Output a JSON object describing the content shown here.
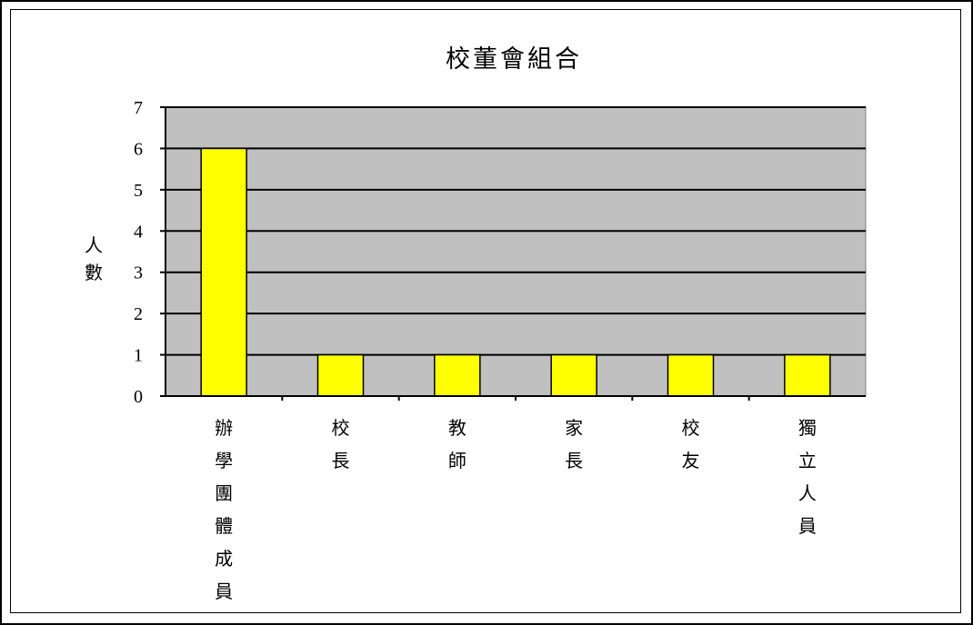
{
  "chart_data": {
    "type": "bar",
    "title": "校董會組合",
    "ylabel": "人數",
    "xlabel": "",
    "categories": [
      "辦學團體成員",
      "校長",
      "教師",
      "家長",
      "校友",
      "獨立人員"
    ],
    "values": [
      6,
      1,
      1,
      1,
      1,
      1
    ],
    "ylim": [
      0,
      7
    ],
    "yticks": [
      0,
      1,
      2,
      3,
      4,
      5,
      6,
      7
    ],
    "grid": true,
    "legend": "none",
    "colors": {
      "bar": "#ffff00",
      "plot_background": "#c0c0c0",
      "gridline": "#000000"
    }
  }
}
